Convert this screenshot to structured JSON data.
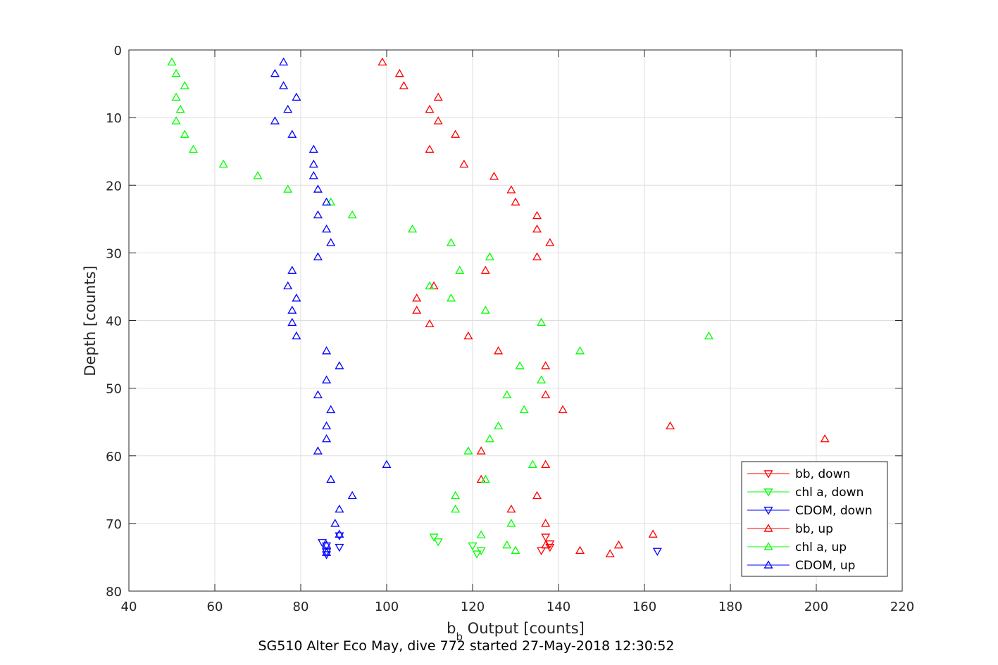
{
  "chart_data": {
    "type": "scatter",
    "xlabel_main": "b",
    "xlabel_sub": "b",
    "xlabel_rest": " Output [counts]",
    "ylabel": "Depth [counts]",
    "footer_title": "SG510 Alter Eco May, dive 772 started 27-May-2018 12:30:52",
    "xlim": [
      40,
      220
    ],
    "ylim": [
      0,
      80
    ],
    "y_reversed": true,
    "grid": true,
    "legend_position": "bottom-right",
    "x_ticks": [
      "40",
      "60",
      "80",
      "100",
      "120",
      "140",
      "160",
      "180",
      "200",
      "220"
    ],
    "y_ticks": [
      "0",
      "10",
      "20",
      "30",
      "40",
      "50",
      "60",
      "70",
      "80"
    ],
    "series": [
      {
        "name": "bb, down",
        "color": "#ff0000",
        "marker": "triangle-down",
        "points": [
          [
            138,
            73
          ],
          [
            137,
            72
          ],
          [
            136,
            74
          ],
          [
            138,
            73.5
          ]
        ]
      },
      {
        "name": "chl a, down",
        "color": "#00ff00",
        "marker": "triangle-down",
        "points": [
          [
            111,
            72
          ],
          [
            112,
            72.7
          ],
          [
            120,
            73.3
          ],
          [
            122,
            74
          ],
          [
            121,
            74.5
          ]
        ]
      },
      {
        "name": "CDOM, down",
        "color": "#0000ff",
        "marker": "triangle-down",
        "points": [
          [
            89,
            71.8
          ],
          [
            85,
            72.8
          ],
          [
            86,
            73.3
          ],
          [
            89,
            73.5
          ],
          [
            86,
            74.2
          ],
          [
            86,
            74.6
          ],
          [
            163,
            74.1
          ]
        ]
      },
      {
        "name": "bb, up",
        "color": "#ff0000",
        "marker": "triangle-up",
        "points": [
          [
            99,
            1.8
          ],
          [
            103,
            3.5
          ],
          [
            104,
            5.3
          ],
          [
            112,
            7
          ],
          [
            110,
            8.8
          ],
          [
            112,
            10.5
          ],
          [
            116,
            12.5
          ],
          [
            110,
            14.7
          ],
          [
            118,
            16.9
          ],
          [
            125,
            18.7
          ],
          [
            129,
            20.7
          ],
          [
            130,
            22.5
          ],
          [
            135,
            24.5
          ],
          [
            135,
            26.5
          ],
          [
            138,
            28.5
          ],
          [
            135,
            30.6
          ],
          [
            123,
            32.6
          ],
          [
            111,
            34.9
          ],
          [
            107,
            36.7
          ],
          [
            107,
            38.5
          ],
          [
            110,
            40.5
          ],
          [
            119,
            42.3
          ],
          [
            126,
            44.5
          ],
          [
            137,
            46.7
          ],
          [
            137,
            51
          ],
          [
            141,
            53.2
          ],
          [
            166,
            55.6
          ],
          [
            202,
            57.5
          ],
          [
            122,
            59.3
          ],
          [
            137,
            61.3
          ],
          [
            122,
            63.5
          ],
          [
            135,
            65.9
          ],
          [
            129,
            67.9
          ],
          [
            137,
            70
          ],
          [
            162,
            71.6
          ],
          [
            154,
            73.2
          ],
          [
            145,
            74
          ],
          [
            152,
            74.5
          ],
          [
            137,
            73.2
          ]
        ]
      },
      {
        "name": "chl a, up",
        "color": "#00ff00",
        "marker": "triangle-up",
        "points": [
          [
            50,
            1.8
          ],
          [
            51,
            3.5
          ],
          [
            53,
            5.3
          ],
          [
            51,
            7
          ],
          [
            52,
            8.8
          ],
          [
            51,
            10.5
          ],
          [
            53,
            12.5
          ],
          [
            55,
            14.7
          ],
          [
            62,
            16.9
          ],
          [
            70,
            18.6
          ],
          [
            77,
            20.6
          ],
          [
            87,
            22.5
          ],
          [
            92,
            24.4
          ],
          [
            106,
            26.5
          ],
          [
            115,
            28.5
          ],
          [
            124,
            30.6
          ],
          [
            117,
            32.6
          ],
          [
            110,
            34.9
          ],
          [
            115,
            36.7
          ],
          [
            123,
            38.5
          ],
          [
            136,
            40.3
          ],
          [
            175,
            42.3
          ],
          [
            145,
            44.5
          ],
          [
            131,
            46.7
          ],
          [
            136,
            48.8
          ],
          [
            128,
            51
          ],
          [
            132,
            53.2
          ],
          [
            126,
            55.6
          ],
          [
            124,
            57.5
          ],
          [
            119,
            59.3
          ],
          [
            134,
            61.3
          ],
          [
            123,
            63.5
          ],
          [
            116,
            65.9
          ],
          [
            116,
            67.9
          ],
          [
            129,
            70
          ],
          [
            122,
            71.7
          ],
          [
            128,
            73.2
          ],
          [
            130,
            74
          ]
        ]
      },
      {
        "name": "CDOM, up",
        "color": "#0000ff",
        "marker": "triangle-up",
        "points": [
          [
            76,
            1.8
          ],
          [
            74,
            3.5
          ],
          [
            76,
            5.3
          ],
          [
            79,
            7
          ],
          [
            77,
            8.8
          ],
          [
            74,
            10.5
          ],
          [
            78,
            12.5
          ],
          [
            83,
            14.7
          ],
          [
            83,
            16.9
          ],
          [
            83,
            18.6
          ],
          [
            84,
            20.6
          ],
          [
            86,
            22.5
          ],
          [
            84,
            24.4
          ],
          [
            86,
            26.5
          ],
          [
            87,
            28.5
          ],
          [
            84,
            30.6
          ],
          [
            78,
            32.6
          ],
          [
            77,
            34.9
          ],
          [
            79,
            36.7
          ],
          [
            78,
            38.5
          ],
          [
            78,
            40.3
          ],
          [
            79,
            42.3
          ],
          [
            86,
            44.5
          ],
          [
            89,
            46.7
          ],
          [
            86,
            48.8
          ],
          [
            84,
            51
          ],
          [
            87,
            53.2
          ],
          [
            86,
            55.6
          ],
          [
            86,
            57.5
          ],
          [
            84,
            59.3
          ],
          [
            100,
            61.3
          ],
          [
            87,
            63.5
          ],
          [
            92,
            65.9
          ],
          [
            89,
            67.9
          ],
          [
            88,
            70
          ],
          [
            89,
            71.6
          ],
          [
            86,
            73.2
          ],
          [
            86,
            74.3
          ]
        ]
      }
    ]
  }
}
